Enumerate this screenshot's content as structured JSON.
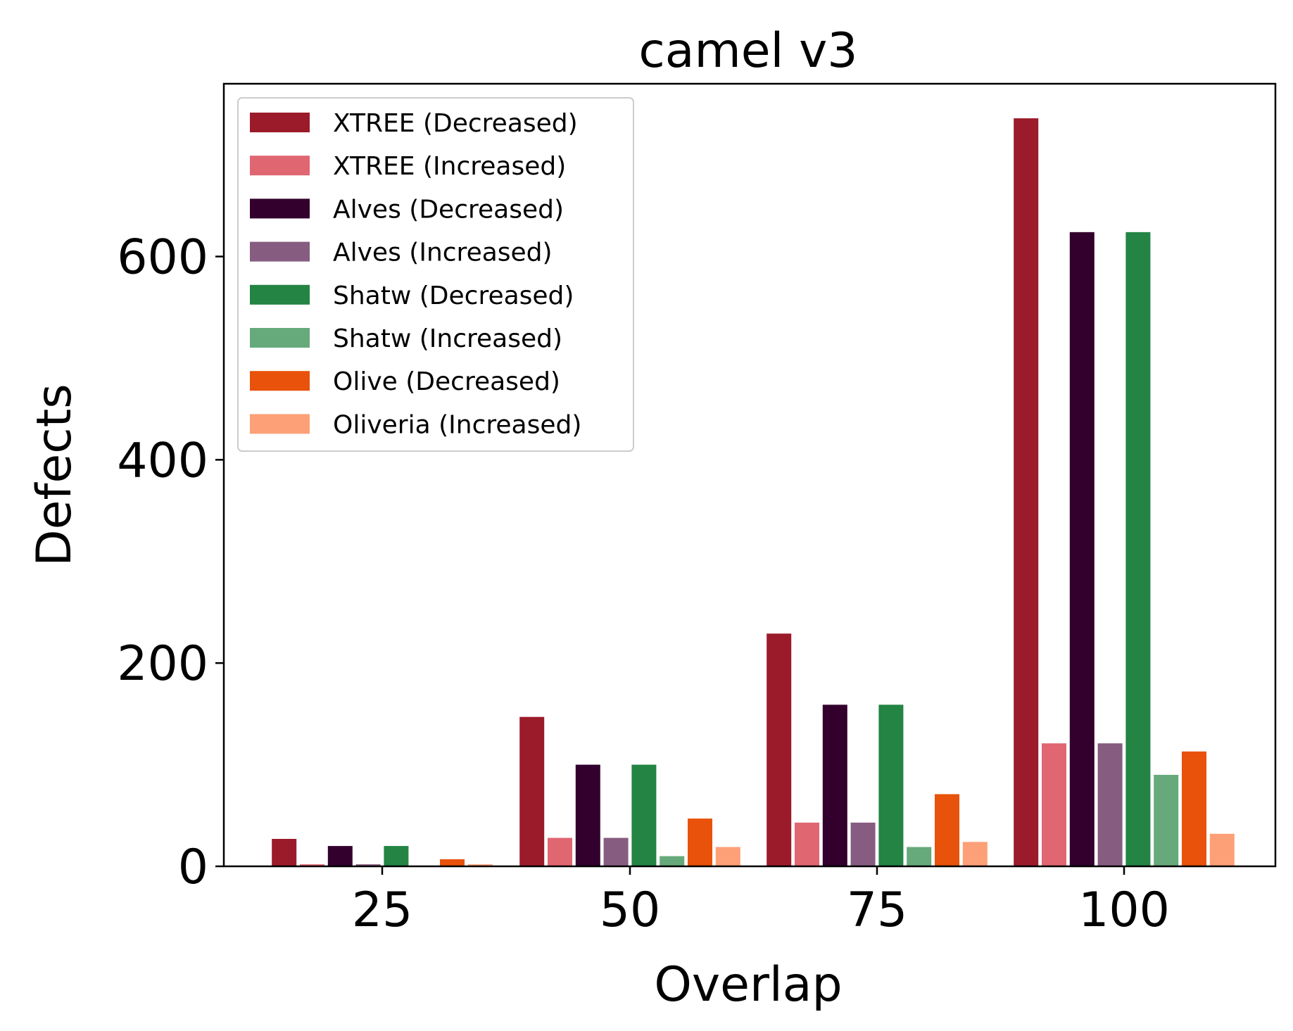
{
  "chart_data": {
    "type": "bar",
    "title": "camel v3",
    "xlabel": "Overlap",
    "ylabel": "Defects",
    "categories": [
      "25",
      "50",
      "75",
      "100"
    ],
    "x_ticks": [
      "25",
      "50",
      "75",
      "100"
    ],
    "y_ticks": [
      "0",
      "200",
      "400",
      "600"
    ],
    "ylim": [
      0,
      770
    ],
    "grid": false,
    "legend_position": "top-left",
    "series": [
      {
        "name": "XTREE (Decreased)",
        "color": "#9b1b2a",
        "values": [
          27,
          147,
          229,
          736
        ]
      },
      {
        "name": "XTREE (Increased)",
        "color": "#e06672",
        "values": [
          2,
          28,
          43,
          121
        ]
      },
      {
        "name": "Alves (Decreased)",
        "color": "#33002d",
        "values": [
          20,
          100,
          159,
          624
        ]
      },
      {
        "name": "Alves (Increased)",
        "color": "#865c80",
        "values": [
          2,
          28,
          43,
          121
        ]
      },
      {
        "name": "Shatw (Decreased)",
        "color": "#238444",
        "values": [
          20,
          100,
          159,
          624
        ]
      },
      {
        "name": "Shatw (Increased)",
        "color": "#66a97b",
        "values": [
          0,
          10,
          19,
          90
        ]
      },
      {
        "name": "Olive (Decreased)",
        "color": "#e8520b",
        "values": [
          7,
          47,
          71,
          113
        ]
      },
      {
        "name": "Oliveria (Increased)",
        "color": "#fda077",
        "values": [
          2,
          19,
          24,
          32
        ]
      }
    ]
  }
}
